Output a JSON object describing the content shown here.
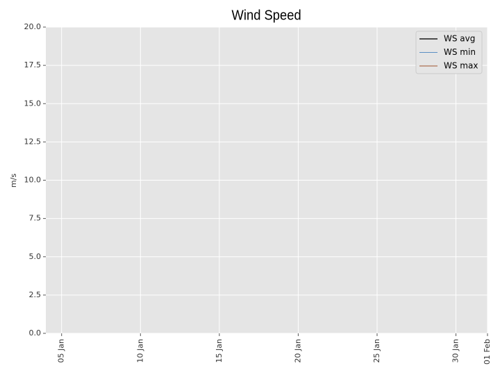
{
  "chart_data": {
    "type": "line",
    "title": "Wind Speed",
    "ylabel": "m/s",
    "x": [],
    "series": [
      {
        "name": "WS avg",
        "color": "#1a1a1a",
        "values": []
      },
      {
        "name": "WS min",
        "color": "#5a8fc3",
        "values": []
      },
      {
        "name": "WS max",
        "color": "#a0522d",
        "values": []
      }
    ],
    "xlim": [
      4,
      32
    ],
    "xticks": [
      {
        "value": 5,
        "label": "05 Jan"
      },
      {
        "value": 10,
        "label": "10 Jan"
      },
      {
        "value": 15,
        "label": "15 Jan"
      },
      {
        "value": 20,
        "label": "20 Jan"
      },
      {
        "value": 25,
        "label": "25 Jan"
      },
      {
        "value": 30,
        "label": "30 Jan"
      },
      {
        "value": 32,
        "label": "01 Feb"
      }
    ],
    "ylim": [
      0,
      20
    ],
    "yticks": [
      {
        "value": 0,
        "label": "0.0"
      },
      2.5,
      {
        "value": 5,
        "label": "5.0"
      },
      7.5,
      {
        "value": 10,
        "label": "10.0"
      },
      12.5,
      {
        "value": 15,
        "label": "15.0"
      },
      17.5,
      {
        "value": 20,
        "label": "20.0"
      }
    ],
    "grid": true,
    "legend": "upper right"
  }
}
